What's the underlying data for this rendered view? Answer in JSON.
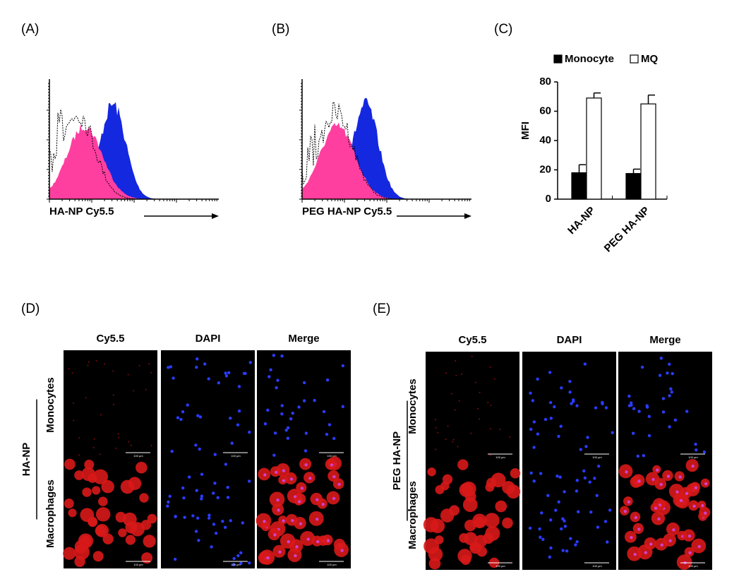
{
  "panels": {
    "A": {
      "label": "(A)",
      "x_label": "HA-NP Cy5.5"
    },
    "B": {
      "label": "(B)",
      "x_label": "PEG HA-NP Cy5.5"
    },
    "D": {
      "label": "(D)",
      "columns": [
        "Cy5.5",
        "DAPI",
        "Merge"
      ],
      "rows": [
        "Monocytes",
        "Macrophages"
      ],
      "group": "HA-NP"
    },
    "E": {
      "label": "(E)",
      "columns": [
        "Cy5.5",
        "DAPI",
        "Merge"
      ],
      "rows": [
        "Monocytes",
        "Macrophages"
      ],
      "group": "PEG HA-NP"
    },
    "scale_bar": "100 μm"
  },
  "chart_data": {
    "type": "bar",
    "panel_label": "(C)",
    "y_label": "MFI",
    "categories": [
      "HA-NP",
      "PEG HA-NP"
    ],
    "series": [
      {
        "name": "Monocyte",
        "color": "#000000",
        "values": [
          18,
          17.5
        ],
        "errors": [
          5.5,
          3
        ]
      },
      {
        "name": "MQ",
        "color": "#ffffff",
        "values": [
          69,
          65
        ],
        "errors": [
          3.5,
          6
        ]
      }
    ],
    "ylim": [
      0,
      80
    ],
    "yticks": [
      0,
      20,
      40,
      60,
      80
    ]
  }
}
